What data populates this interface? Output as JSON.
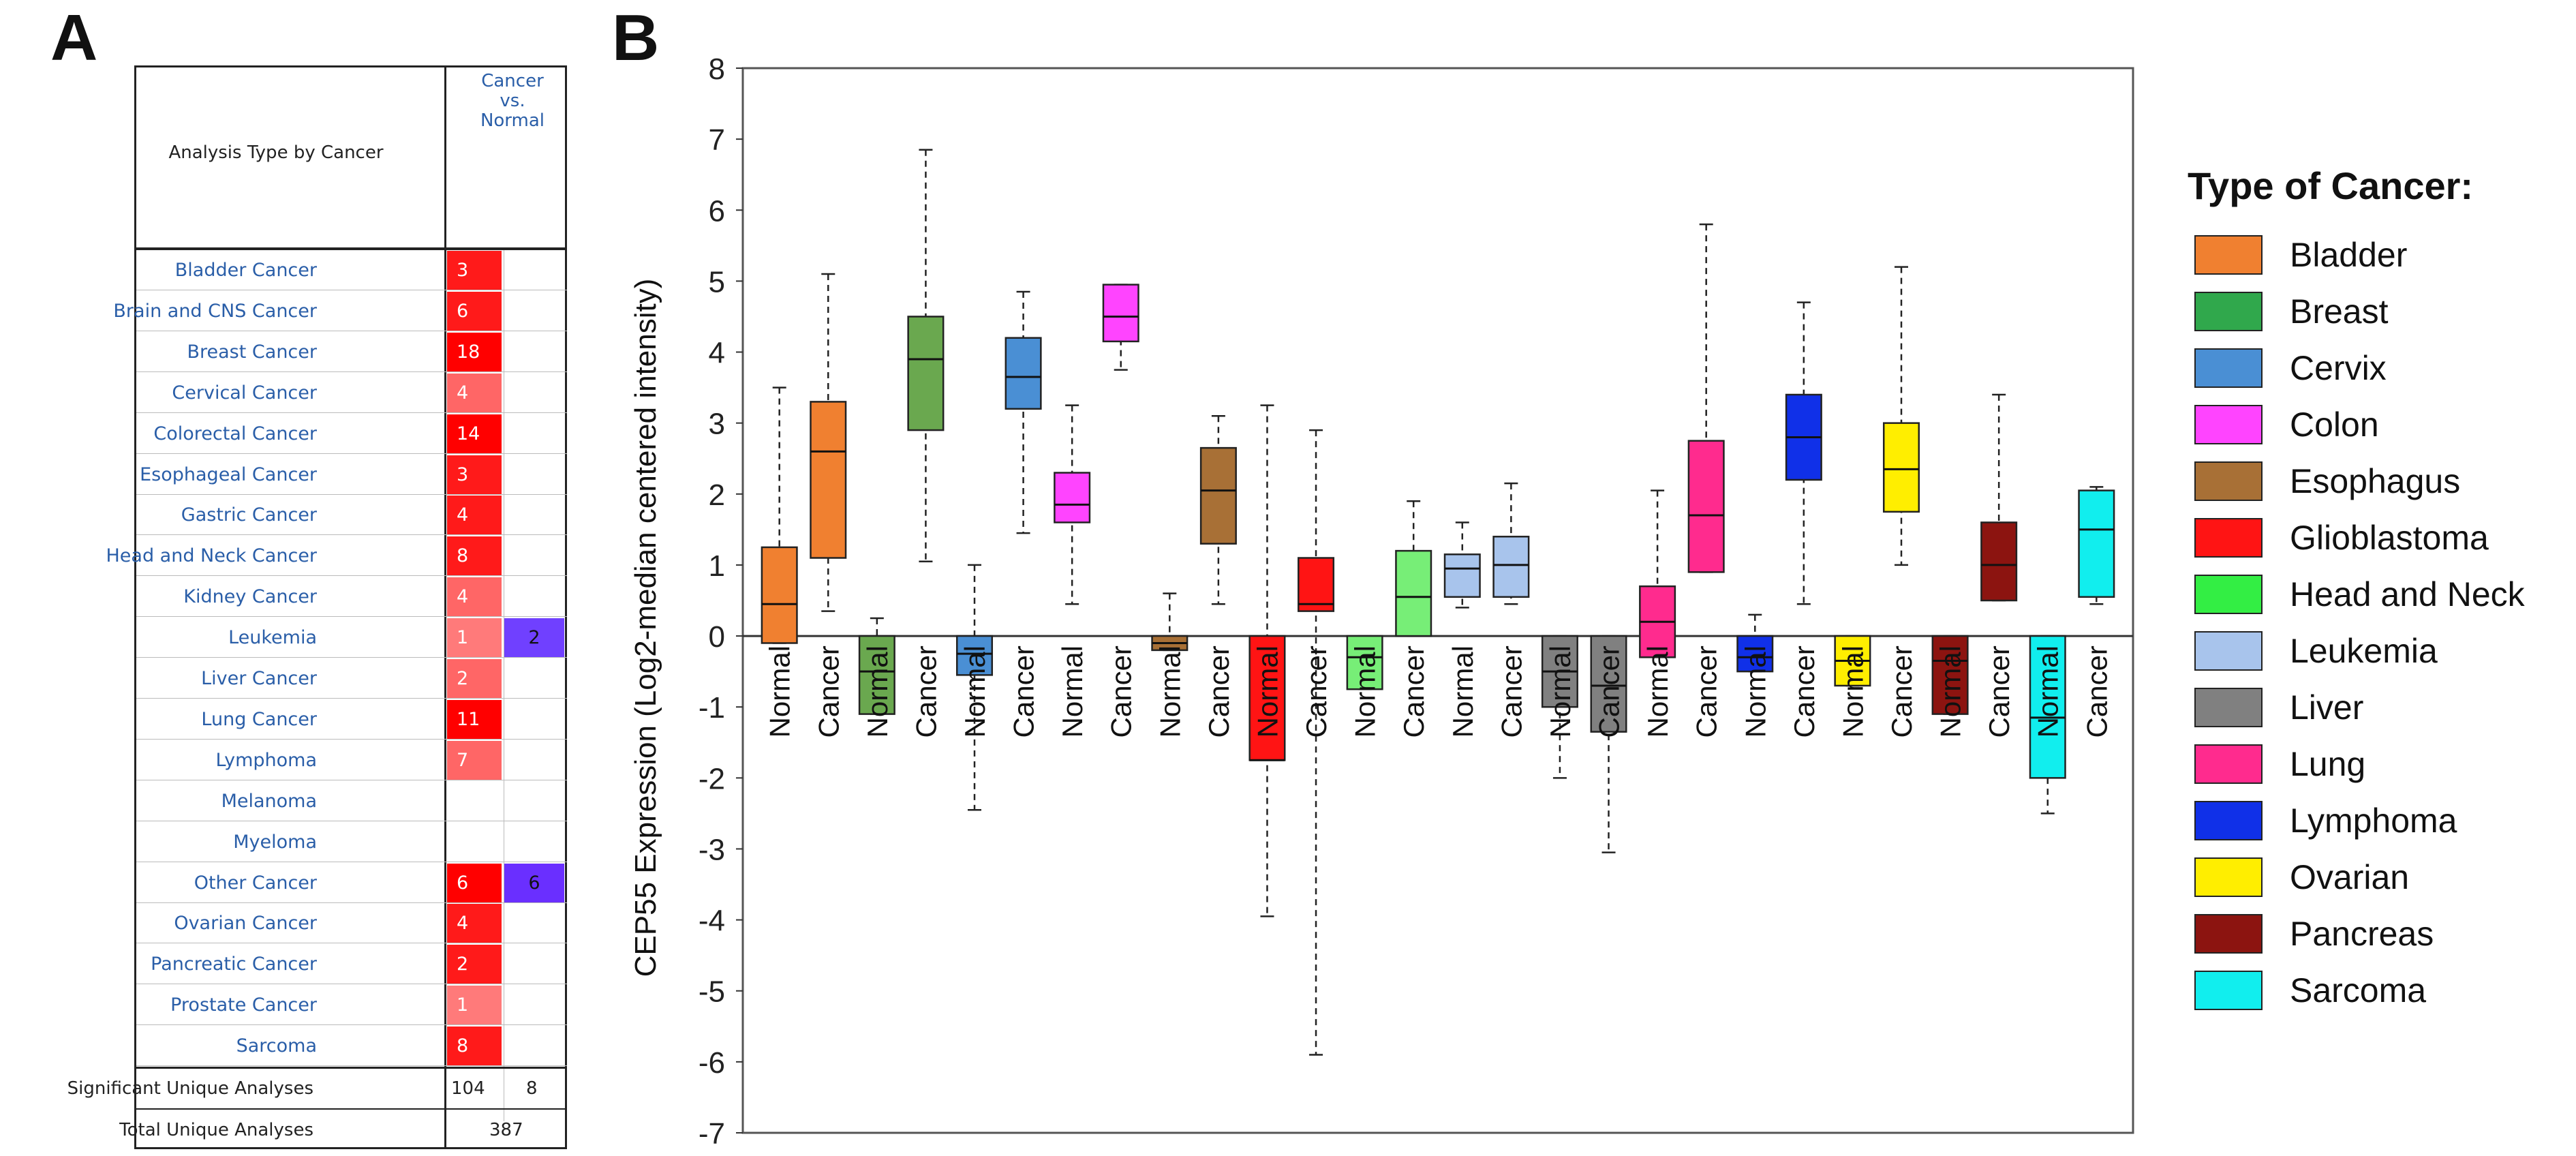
{
  "panel_a": {
    "letter": "A",
    "header_label": "Analysis Type by Cancer",
    "column_header": [
      "Cancer",
      "vs.",
      "Normal"
    ],
    "rows": [
      {
        "label": "Bladder Cancer",
        "up": "3",
        "down": "",
        "up_color": "#ff1a1a"
      },
      {
        "label": "Brain and CNS Cancer",
        "up": "6",
        "down": "",
        "up_color": "#ff1a1a"
      },
      {
        "label": "Breast Cancer",
        "up": "18",
        "down": "",
        "up_color": "#ff0000"
      },
      {
        "label": "Cervical Cancer",
        "up": "4",
        "down": "",
        "up_color": "#ff6666"
      },
      {
        "label": "Colorectal Cancer",
        "up": "14",
        "down": "",
        "up_color": "#ff0000"
      },
      {
        "label": "Esophageal Cancer",
        "up": "3",
        "down": "",
        "up_color": "#ff1a1a"
      },
      {
        "label": "Gastric Cancer",
        "up": "4",
        "down": "",
        "up_color": "#ff1a1a"
      },
      {
        "label": "Head and Neck Cancer",
        "up": "8",
        "down": "",
        "up_color": "#ff1a1a"
      },
      {
        "label": "Kidney Cancer",
        "up": "4",
        "down": "",
        "up_color": "#ff6666"
      },
      {
        "label": "Leukemia",
        "up": "1",
        "down": "2",
        "up_color": "#ff7a7a",
        "down_color": "#7040ff"
      },
      {
        "label": "Liver Cancer",
        "up": "2",
        "down": "",
        "up_color": "#ff6666"
      },
      {
        "label": "Lung Cancer",
        "up": "11",
        "down": "",
        "up_color": "#ff0000"
      },
      {
        "label": "Lymphoma",
        "up": "7",
        "down": "",
        "up_color": "#ff6666"
      },
      {
        "label": "Melanoma",
        "up": "",
        "down": ""
      },
      {
        "label": "Myeloma",
        "up": "",
        "down": ""
      },
      {
        "label": "Other Cancer",
        "up": "6",
        "down": "6",
        "up_color": "#ff0000",
        "down_color": "#6a2fff"
      },
      {
        "label": "Ovarian Cancer",
        "up": "4",
        "down": "",
        "up_color": "#ff1a1a"
      },
      {
        "label": "Pancreatic Cancer",
        "up": "2",
        "down": "",
        "up_color": "#ff1a1a"
      },
      {
        "label": "Prostate Cancer",
        "up": "1",
        "down": "",
        "up_color": "#ff7a7a"
      },
      {
        "label": "Sarcoma",
        "up": "8",
        "down": "",
        "up_color": "#ff1a1a"
      }
    ],
    "footer": [
      {
        "label": "Significant Unique Analyses",
        "values": [
          "104",
          "8"
        ]
      },
      {
        "label": "Total Unique Analyses",
        "values": [
          "387"
        ]
      }
    ]
  },
  "chart_data": {
    "panel_letter": "B",
    "type": "boxplot",
    "ylabel": "CEP55 Expression (Log2-median centered intensity)",
    "ylim": [
      -7,
      8
    ],
    "yticks": [
      "8",
      "7",
      "6",
      "5",
      "4",
      "3",
      "2",
      "1",
      "0",
      "-1",
      "-2",
      "-3",
      "-4",
      "-5",
      "-6",
      "-7"
    ],
    "legend_title": "Type of Cancer:",
    "legend": [
      {
        "name": "Bladder",
        "color": "#f08030"
      },
      {
        "name": "Breast",
        "color": "#30a84c"
      },
      {
        "name": "Cervix",
        "color": "#4a8fd4"
      },
      {
        "name": "Colon",
        "color": "#ff44ff"
      },
      {
        "name": "Esophagus",
        "color": "#a87036"
      },
      {
        "name": "Glioblastoma",
        "color": "#ff1414"
      },
      {
        "name": "Head and Neck",
        "color": "#33ee44"
      },
      {
        "name": "Leukemia",
        "color": "#a8c4ec"
      },
      {
        "name": "Liver",
        "color": "#808080"
      },
      {
        "name": "Lung",
        "color": "#ff2b8e"
      },
      {
        "name": "Lymphoma",
        "color": "#1030e8"
      },
      {
        "name": "Ovarian",
        "color": "#ffee00"
      },
      {
        "name": "Pancreas",
        "color": "#8c1410"
      },
      {
        "name": "Sarcoma",
        "color": "#11eeee"
      }
    ],
    "boxes": [
      {
        "label": "Normal",
        "cancer": "Bladder",
        "color": "#f08030",
        "min": -0.1,
        "q1": -0.1,
        "median": 0.45,
        "q3": 1.25,
        "max": 3.5
      },
      {
        "label": "Cancer",
        "cancer": "Bladder",
        "color": "#f08030",
        "min": 0.35,
        "q1": 1.1,
        "median": 2.6,
        "q3": 3.3,
        "max": 5.1
      },
      {
        "label": "Normal",
        "cancer": "Breast",
        "color": "#6aa84f",
        "min": -1.1,
        "q1": -1.1,
        "median": -0.5,
        "q3": 0.0,
        "max": 0.25
      },
      {
        "label": "Cancer",
        "cancer": "Breast",
        "color": "#6aa84f",
        "min": 1.05,
        "q1": 2.9,
        "median": 3.9,
        "q3": 4.5,
        "max": 6.85
      },
      {
        "label": "Normal",
        "cancer": "Cervix",
        "color": "#4a8fd4",
        "min": -2.45,
        "q1": -0.55,
        "median": -0.25,
        "q3": 0.0,
        "max": 1.0
      },
      {
        "label": "Cancer",
        "cancer": "Cervix",
        "color": "#4a8fd4",
        "min": 1.45,
        "q1": 3.2,
        "median": 3.65,
        "q3": 4.2,
        "max": 4.85
      },
      {
        "label": "Normal",
        "cancer": "Colon",
        "color": "#ff44ff",
        "min": 0.45,
        "q1": 1.6,
        "median": 1.85,
        "q3": 2.3,
        "max": 3.25
      },
      {
        "label": "Cancer",
        "cancer": "Colon",
        "color": "#ff44ff",
        "min": 3.75,
        "q1": 4.15,
        "median": 4.5,
        "q3": 4.95,
        "max": 4.95
      },
      {
        "label": "Normal",
        "cancer": "Esophagus",
        "color": "#a87036",
        "min": -0.2,
        "q1": -0.2,
        "median": -0.1,
        "q3": 0.0,
        "max": 0.6
      },
      {
        "label": "Cancer",
        "cancer": "Esophagus",
        "color": "#a87036",
        "min": 0.45,
        "q1": 1.3,
        "median": 2.05,
        "q3": 2.65,
        "max": 3.1
      },
      {
        "label": "Normal",
        "cancer": "Glioblastoma",
        "color": "#ff1414",
        "min": -3.95,
        "q1": -1.75,
        "median": -1.75,
        "q3": 0.0,
        "max": 3.25
      },
      {
        "label": "Cancer",
        "cancer": "Glioblastoma",
        "color": "#ff1414",
        "min": -5.9,
        "q1": 0.35,
        "median": 0.45,
        "q3": 1.1,
        "max": 2.9
      },
      {
        "label": "Normal",
        "cancer": "Head and Neck",
        "color": "#77ee77",
        "min": -0.75,
        "q1": -0.75,
        "median": -0.3,
        "q3": 0.0,
        "max": 0.0
      },
      {
        "label": "Cancer",
        "cancer": "Head and Neck",
        "color": "#77ee77",
        "min": 0.0,
        "q1": 0.0,
        "median": 0.55,
        "q3": 1.2,
        "max": 1.9
      },
      {
        "label": "Normal",
        "cancer": "Leukemia",
        "color": "#a8c4ec",
        "min": 0.4,
        "q1": 0.55,
        "median": 0.95,
        "q3": 1.15,
        "max": 1.6
      },
      {
        "label": "Cancer",
        "cancer": "Leukemia",
        "color": "#a8c4ec",
        "min": 0.45,
        "q1": 0.55,
        "median": 1.0,
        "q3": 1.4,
        "max": 2.15
      },
      {
        "label": "Normal",
        "cancer": "Liver",
        "color": "#808080",
        "min": -2.0,
        "q1": -1.0,
        "median": -0.5,
        "q3": 0.0,
        "max": 0.0
      },
      {
        "label": "Cancer",
        "cancer": "Liver",
        "color": "#808080",
        "min": -3.05,
        "q1": -1.35,
        "median": -0.7,
        "q3": 0.0,
        "max": 0.0
      },
      {
        "label": "Normal",
        "cancer": "Lung",
        "color": "#ff2b8e",
        "min": -0.3,
        "q1": -0.3,
        "median": 0.2,
        "q3": 0.7,
        "max": 2.05
      },
      {
        "label": "Cancer",
        "cancer": "Lung",
        "color": "#ff2b8e",
        "min": 0.9,
        "q1": 0.9,
        "median": 1.7,
        "q3": 2.75,
        "max": 5.8
      },
      {
        "label": "Normal",
        "cancer": "Lymphoma",
        "color": "#1030e8",
        "min": -0.5,
        "q1": -0.5,
        "median": -0.3,
        "q3": 0.0,
        "max": 0.3
      },
      {
        "label": "Cancer",
        "cancer": "Lymphoma",
        "color": "#1030e8",
        "min": 0.45,
        "q1": 2.2,
        "median": 2.8,
        "q3": 3.4,
        "max": 4.7
      },
      {
        "label": "Normal",
        "cancer": "Ovarian",
        "color": "#ffee00",
        "min": -0.7,
        "q1": -0.7,
        "median": -0.35,
        "q3": 0.0,
        "max": 0.0
      },
      {
        "label": "Cancer",
        "cancer": "Ovarian",
        "color": "#ffee00",
        "min": 1.0,
        "q1": 1.75,
        "median": 2.35,
        "q3": 3.0,
        "max": 5.2
      },
      {
        "label": "Normal",
        "cancer": "Pancreas",
        "color": "#8c1410",
        "min": -1.1,
        "q1": -1.1,
        "median": -0.35,
        "q3": 0.0,
        "max": 0.0
      },
      {
        "label": "Cancer",
        "cancer": "Pancreas",
        "color": "#8c1410",
        "min": 0.5,
        "q1": 0.5,
        "median": 1.0,
        "q3": 1.6,
        "max": 3.4
      },
      {
        "label": "Normal",
        "cancer": "Sarcoma",
        "color": "#11eeee",
        "min": -2.5,
        "q1": -2.0,
        "median": -1.15,
        "q3": 0.0,
        "max": 0.0
      },
      {
        "label": "Cancer",
        "cancer": "Sarcoma",
        "color": "#11eeee",
        "min": 0.45,
        "q1": 0.55,
        "median": 1.5,
        "q3": 2.05,
        "max": 2.1
      }
    ]
  }
}
